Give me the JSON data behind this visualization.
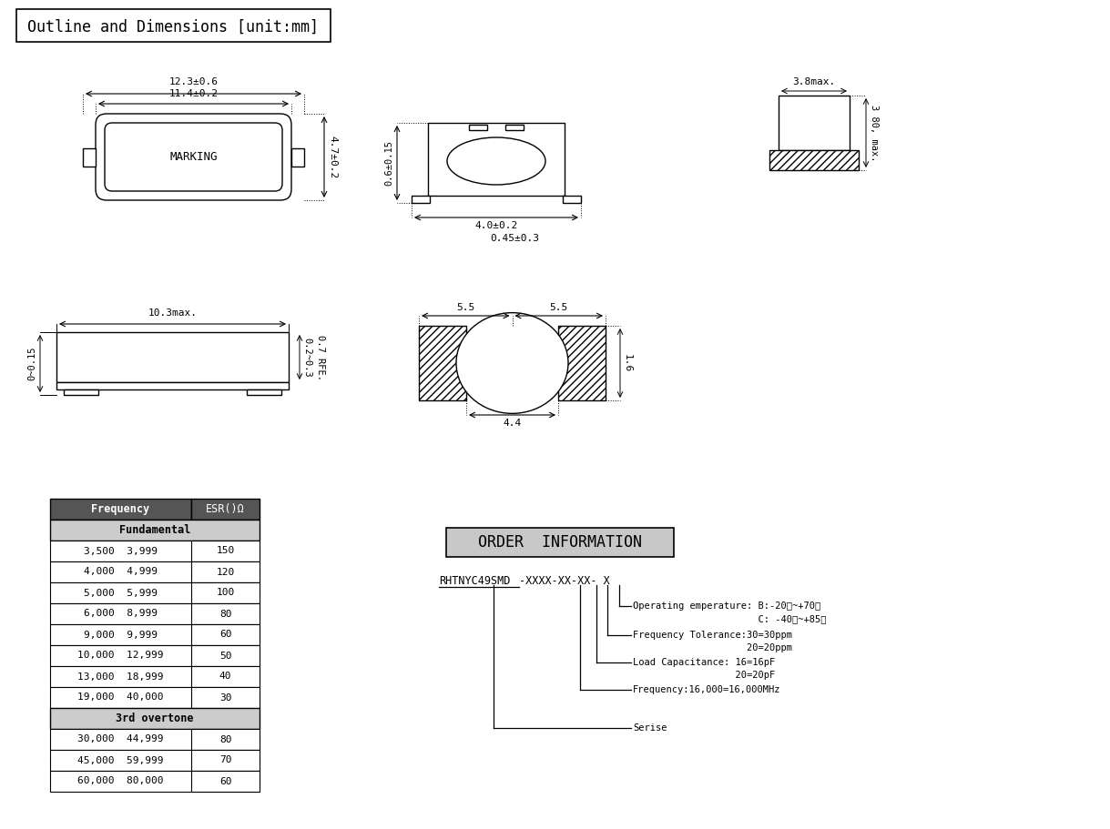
{
  "title": "Outline and Dimensions [unit:mm]",
  "bg_color": "#ffffff",
  "table_header_bg": "#555555",
  "table_header_color": "#ffffff",
  "table_subheader_bg": "#cccccc",
  "table_rows": [
    [
      "3,500  3,999",
      "150"
    ],
    [
      "4,000  4,999",
      "120"
    ],
    [
      "5,000  5,999",
      "100"
    ],
    [
      "6,000  8,999",
      "80"
    ],
    [
      "9,000  9,999",
      "60"
    ],
    [
      "10,000  12,999",
      "50"
    ],
    [
      "13,000  18,999",
      "40"
    ],
    [
      "19,000  40,000",
      "30"
    ]
  ],
  "table_rows_3rd": [
    [
      "30,000  44,999",
      "80"
    ],
    [
      "45,000  59,999",
      "70"
    ],
    [
      "60,000  80,000",
      "60"
    ]
  ],
  "order_info_title": "ORDER  INFORMATION",
  "order_code": "RHTNYC49SMD-XXXX-XX-XX- X"
}
